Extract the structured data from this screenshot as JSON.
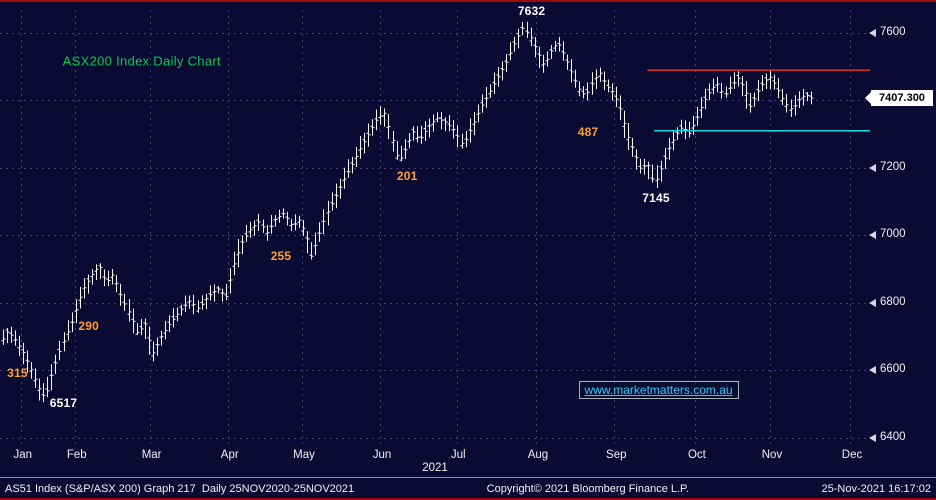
{
  "statusbar": {
    "left": "AS51 Index (S&P/ASX 200) Graph 217  Daily 25NOV2020-25NOV2021",
    "center": "Copyright© 2021 Bloomberg Finance L.P.",
    "right": "25-Nov-2021 16:17:02"
  },
  "colors": {
    "background": "#0a0a32",
    "grid": "#3f3f85",
    "bars": "#f5f5f5",
    "resistance_red": "#e03030",
    "support_cyan": "#00dce0",
    "amber": "#ffa132",
    "title_green": "#00cc55",
    "link_cyan": "#2fc9ff",
    "border_red": "#9c0a0a"
  },
  "chart_data": {
    "type": "bar",
    "subtype": "daily-ohlc-bars",
    "title": "ASX200 Index Daily Chart",
    "title_pos": {
      "t": 0.163,
      "v": 7516
    },
    "instrument": "AS51 Index (S&P/ASX 200)",
    "period": "Daily 25NOV2020-25NOV2021",
    "last": 7407.3,
    "last_price_label": "7407.300",
    "x_axis": {
      "year_label": "2021",
      "months": [
        "Jan",
        "Feb",
        "Mar",
        "Apr",
        "May",
        "Jun",
        "Jul",
        "Aug",
        "Sep",
        "Oct",
        "Nov",
        "Dec"
      ],
      "month_pos": [
        0.024,
        0.086,
        0.172,
        0.262,
        0.347,
        0.437,
        0.525,
        0.616,
        0.706,
        0.799,
        0.885,
        0.977
      ]
    },
    "y_axis": {
      "ticks": [
        7600,
        7400,
        7200,
        7000,
        6800,
        6600,
        6400
      ],
      "range": [
        6376,
        7668
      ]
    },
    "levels": [
      {
        "name": "resistance-line",
        "value": 7490,
        "color": "#e03030",
        "from_t": 0.744
      },
      {
        "name": "support-line",
        "value": 7310,
        "color": "#00dce0",
        "from_t": 0.752
      }
    ],
    "key_points": {
      "jan_low": 6517,
      "aug_high": 7632,
      "oct_low": 7145,
      "last_close": 7407.3,
      "pullback_sizes": [
        315,
        290,
        255,
        201,
        487
      ]
    },
    "annotations": [
      {
        "text": "315",
        "color": "#ffa132",
        "t": 0.02,
        "v": 6593
      },
      {
        "text": "6517",
        "color": "#ffffff",
        "t": 0.073,
        "v": 6503
      },
      {
        "text": "290",
        "color": "#ffa132",
        "t": 0.102,
        "v": 6731
      },
      {
        "text": "255",
        "color": "#ffa132",
        "t": 0.323,
        "v": 6939
      },
      {
        "text": "201",
        "color": "#ffa132",
        "t": 0.468,
        "v": 7176
      },
      {
        "text": "487",
        "color": "#ffa132",
        "t": 0.676,
        "v": 7307
      },
      {
        "text": "7145",
        "color": "#ffffff",
        "t": 0.754,
        "v": 7112
      },
      {
        "text": "7632",
        "color": "#ffffff",
        "t": 0.611,
        "v": 7664
      }
    ],
    "watermark": {
      "text": "www.marketmatters.com.au",
      "t": 0.757,
      "v": 6542
    },
    "bars_domain": [
      0.003,
      0.932
    ],
    "series_anchors": [
      [
        0.0,
        6680
      ],
      [
        0.008,
        6715
      ],
      [
        0.016,
        6695
      ],
      [
        0.026,
        6655
      ],
      [
        0.036,
        6600
      ],
      [
        0.046,
        6540
      ],
      [
        0.052,
        6517
      ],
      [
        0.06,
        6595
      ],
      [
        0.07,
        6668
      ],
      [
        0.082,
        6740
      ],
      [
        0.094,
        6835
      ],
      [
        0.106,
        6885
      ],
      [
        0.114,
        6912
      ],
      [
        0.122,
        6858
      ],
      [
        0.13,
        6886
      ],
      [
        0.14,
        6812
      ],
      [
        0.15,
        6762
      ],
      [
        0.158,
        6706
      ],
      [
        0.166,
        6742
      ],
      [
        0.175,
        6648
      ],
      [
        0.185,
        6700
      ],
      [
        0.196,
        6742
      ],
      [
        0.208,
        6780
      ],
      [
        0.218,
        6806
      ],
      [
        0.228,
        6782
      ],
      [
        0.238,
        6818
      ],
      [
        0.25,
        6842
      ],
      [
        0.26,
        6818
      ],
      [
        0.268,
        6908
      ],
      [
        0.278,
        6978
      ],
      [
        0.288,
        7018
      ],
      [
        0.298,
        7042
      ],
      [
        0.306,
        7006
      ],
      [
        0.316,
        7048
      ],
      [
        0.326,
        7066
      ],
      [
        0.336,
        7026
      ],
      [
        0.344,
        7046
      ],
      [
        0.352,
        7002
      ],
      [
        0.358,
        6936
      ],
      [
        0.366,
        6998
      ],
      [
        0.374,
        7058
      ],
      [
        0.384,
        7108
      ],
      [
        0.394,
        7162
      ],
      [
        0.404,
        7208
      ],
      [
        0.414,
        7258
      ],
      [
        0.424,
        7302
      ],
      [
        0.434,
        7348
      ],
      [
        0.442,
        7362
      ],
      [
        0.45,
        7292
      ],
      [
        0.458,
        7216
      ],
      [
        0.466,
        7258
      ],
      [
        0.474,
        7308
      ],
      [
        0.482,
        7282
      ],
      [
        0.492,
        7322
      ],
      [
        0.502,
        7348
      ],
      [
        0.512,
        7336
      ],
      [
        0.522,
        7312
      ],
      [
        0.532,
        7266
      ],
      [
        0.542,
        7322
      ],
      [
        0.552,
        7378
      ],
      [
        0.562,
        7422
      ],
      [
        0.572,
        7468
      ],
      [
        0.582,
        7514
      ],
      [
        0.592,
        7572
      ],
      [
        0.601,
        7616
      ],
      [
        0.609,
        7590
      ],
      [
        0.617,
        7546
      ],
      [
        0.625,
        7502
      ],
      [
        0.633,
        7546
      ],
      [
        0.641,
        7572
      ],
      [
        0.649,
        7532
      ],
      [
        0.657,
        7482
      ],
      [
        0.665,
        7436
      ],
      [
        0.673,
        7412
      ],
      [
        0.681,
        7456
      ],
      [
        0.689,
        7482
      ],
      [
        0.697,
        7442
      ],
      [
        0.705,
        7422
      ],
      [
        0.713,
        7372
      ],
      [
        0.721,
        7296
      ],
      [
        0.729,
        7246
      ],
      [
        0.737,
        7192
      ],
      [
        0.744,
        7218
      ],
      [
        0.752,
        7150
      ],
      [
        0.76,
        7202
      ],
      [
        0.768,
        7256
      ],
      [
        0.776,
        7296
      ],
      [
        0.784,
        7322
      ],
      [
        0.792,
        7302
      ],
      [
        0.8,
        7342
      ],
      [
        0.808,
        7392
      ],
      [
        0.816,
        7426
      ],
      [
        0.824,
        7452
      ],
      [
        0.832,
        7412
      ],
      [
        0.84,
        7442
      ],
      [
        0.848,
        7466
      ],
      [
        0.856,
        7432
      ],
      [
        0.862,
        7382
      ],
      [
        0.87,
        7422
      ],
      [
        0.878,
        7456
      ],
      [
        0.886,
        7470
      ],
      [
        0.894,
        7432
      ],
      [
        0.902,
        7392
      ],
      [
        0.91,
        7372
      ],
      [
        0.918,
        7402
      ],
      [
        0.925,
        7418
      ],
      [
        0.932,
        7407.3
      ]
    ]
  }
}
